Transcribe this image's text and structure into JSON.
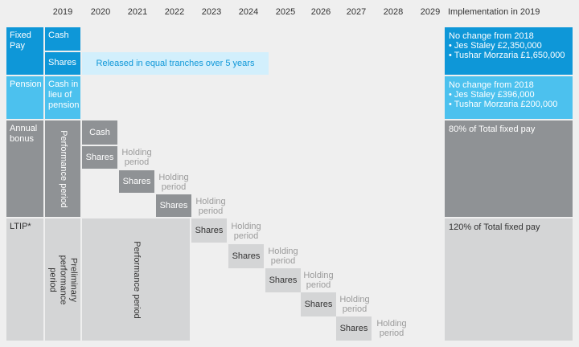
{
  "years": [
    "2019",
    "2020",
    "2021",
    "2022",
    "2023",
    "2024",
    "2025",
    "2026",
    "2027",
    "2028",
    "2029"
  ],
  "implementation_header": "Implementation in 2019",
  "rows": {
    "fixed_pay": {
      "label": "Fixed Pay",
      "cash": "Cash",
      "shares": "Shares",
      "shares_note": "Released in equal tranches over 5 years",
      "impl_title": "No change from 2018",
      "impl_lines": [
        "• Jes Staley £2,350,000",
        "• Tushar Morzaria £1,650,000"
      ]
    },
    "pension": {
      "label": "Pension",
      "cash_label": "Cash in lieu of pension",
      "impl_title": "No change from 2018",
      "impl_lines": [
        "• Jes Staley £396,000",
        "• Tushar Morzaria £200,000"
      ]
    },
    "annual_bonus": {
      "label": "Annual bonus",
      "performance": "Performance period",
      "cash": "Cash",
      "shares": "Shares",
      "holding": "Holding period",
      "impl": "80% of Total fixed pay"
    },
    "ltip": {
      "label": "LTIP*",
      "preliminary": "Preliminary performance period",
      "performance": "Performance period",
      "shares": "Shares",
      "holding": "Holding period",
      "impl": "120% of Total fixed pay"
    }
  },
  "colors": {
    "blue_dark": "#0e97d8",
    "blue_mid": "#4cc1ee",
    "blue_light": "#d2effc",
    "grey_dark": "#8f9295",
    "grey_mid": "#a8aaac",
    "grey_light": "#d4d5d6",
    "background": "#efefef"
  }
}
